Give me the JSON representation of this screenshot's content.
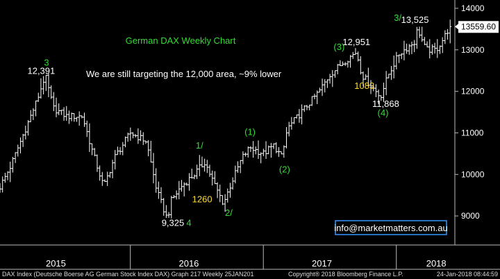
{
  "chart_data": {
    "type": "ohlc",
    "title": "German DAX Weekly Chart",
    "note": "We are still targeting the 12,000 area, ~9% lower",
    "ylim": [
      8300,
      14200
    ],
    "y_ticks": [
      9000,
      10000,
      11000,
      12000,
      13000,
      14000
    ],
    "y_tick_labels": [
      "9000",
      "10000",
      "11000",
      "12000",
      "13000",
      "14000"
    ],
    "x_range": [
      2014.72,
      2018.14
    ],
    "year_labels": [
      {
        "label": "2015",
        "x": 2015.14
      },
      {
        "label": "2016",
        "x": 2016.14
      },
      {
        "label": "2017",
        "x": 2017.14
      },
      {
        "label": "2018",
        "x": 2018.0
      }
    ],
    "year_separators": [
      2015.7,
      2016.7,
      2017.7
    ],
    "last_value_label": "13559.60",
    "last_value": 13559.6,
    "anchors": [
      [
        2014.72,
        9700
      ],
      [
        2014.8,
        10200
      ],
      [
        2014.9,
        11000
      ],
      [
        2015.0,
        11800
      ],
      [
        2015.06,
        12391
      ],
      [
        2015.12,
        11600
      ],
      [
        2015.22,
        11400
      ],
      [
        2015.34,
        11400
      ],
      [
        2015.42,
        10500
      ],
      [
        2015.5,
        9700
      ],
      [
        2015.58,
        10400
      ],
      [
        2015.7,
        11000
      ],
      [
        2015.82,
        10800
      ],
      [
        2015.9,
        9600
      ],
      [
        2015.98,
        8900
      ],
      [
        2016.0,
        9325
      ],
      [
        2016.08,
        9700
      ],
      [
        2016.18,
        10000
      ],
      [
        2016.26,
        10300
      ],
      [
        2016.34,
        9700
      ],
      [
        2016.4,
        9300
      ],
      [
        2016.46,
        9800
      ],
      [
        2016.54,
        10400
      ],
      [
        2016.6,
        10650
      ],
      [
        2016.7,
        10500
      ],
      [
        2016.78,
        10700
      ],
      [
        2016.84,
        10400
      ],
      [
        2016.88,
        11100
      ],
      [
        2016.96,
        11400
      ],
      [
        2017.04,
        11700
      ],
      [
        2017.12,
        12000
      ],
      [
        2017.2,
        12400
      ],
      [
        2017.3,
        12700
      ],
      [
        2017.4,
        12951
      ],
      [
        2017.44,
        12400
      ],
      [
        2017.52,
        12100
      ],
      [
        2017.58,
        11868
      ],
      [
        2017.64,
        12400
      ],
      [
        2017.72,
        12900
      ],
      [
        2017.84,
        13200
      ],
      [
        2017.86,
        13525
      ],
      [
        2017.92,
        13000
      ],
      [
        2018.0,
        13000
      ],
      [
        2018.06,
        13300
      ],
      [
        2018.1,
        13559.6
      ]
    ],
    "annotations": [
      {
        "text": "3",
        "x": 2015.07,
        "y": 12620,
        "color": "#33dd33"
      },
      {
        "text": "12,391",
        "x": 2015.03,
        "y": 12420,
        "color": "#ffffff"
      },
      {
        "text": "1/",
        "x": 2016.22,
        "y": 10620,
        "color": "#33dd33"
      },
      {
        "text": "1260",
        "x": 2016.24,
        "y": 9330,
        "color": "#ffdd33"
      },
      {
        "text": "2/",
        "x": 2016.44,
        "y": 9000,
        "color": "#33dd33"
      },
      {
        "text": "9,325",
        "x": 2016.02,
        "y": 8760,
        "color": "#ffffff"
      },
      {
        "text": "4",
        "x": 2016.14,
        "y": 8760,
        "color": "#33dd33"
      },
      {
        "text": "(1)",
        "x": 2016.6,
        "y": 10950,
        "color": "#33dd33"
      },
      {
        "text": "(2)",
        "x": 2016.86,
        "y": 10050,
        "color": "#33dd33"
      },
      {
        "text": "(3)",
        "x": 2017.27,
        "y": 13000,
        "color": "#33dd33"
      },
      {
        "text": "12,951",
        "x": 2017.4,
        "y": 13110,
        "color": "#ffffff"
      },
      {
        "text": "1083",
        "x": 2017.46,
        "y": 12060,
        "color": "#ffdd33"
      },
      {
        "text": "11,868",
        "x": 2017.62,
        "y": 11630,
        "color": "#ffffff"
      },
      {
        "text": "(4)",
        "x": 2017.6,
        "y": 11410,
        "color": "#33dd33"
      },
      {
        "text": "3/",
        "x": 2017.71,
        "y": 13700,
        "color": "#33dd33"
      },
      {
        "text": "13,525",
        "x": 2017.84,
        "y": 13650,
        "color": "#ffffff"
      }
    ]
  },
  "email": "info@marketmatters.com.au",
  "footer": {
    "left": "DAX Index (Deutsche Boerse AG German Stock Index DAX) Graph 217 Weekly 25JAN201",
    "center": "Copyright® 2018 Bloomberg Finance L.P.",
    "right": "24-Jan-2018 08:44:59"
  },
  "colors": {
    "background": "#000000",
    "bars": "#ffffff",
    "axis": "#bbbbbb",
    "green": "#33dd33",
    "yellow": "#ffdd33",
    "email_border": "#3399ff"
  }
}
